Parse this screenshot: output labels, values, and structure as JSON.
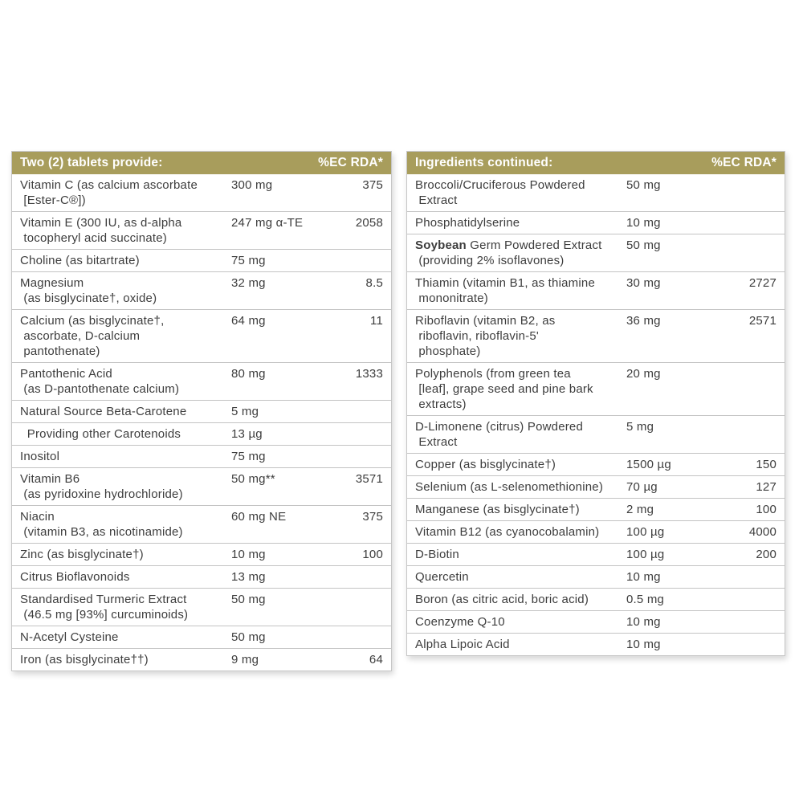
{
  "colors": {
    "header_bg": "#a89d5c",
    "header_text": "#ffffff",
    "row_text": "#3d3d3d",
    "divider": "#c3c3c3",
    "table_border": "#c6c6c6",
    "page_bg": "#ffffff"
  },
  "tables": [
    {
      "id": "left",
      "header": {
        "title": "Two (2) tablets provide:",
        "rda_label": "%EC RDA*"
      },
      "rows": [
        {
          "name": "Vitamin C (as calcium ascorbate\n [Ester-C®])",
          "amount": "300 mg",
          "rda": "375"
        },
        {
          "name": "Vitamin E (300 IU, as d-alpha\n tocopheryl acid succinate)",
          "amount": "247 mg α-TE",
          "rda": "2058"
        },
        {
          "name": "Choline (as bitartrate)",
          "amount": "75 mg",
          "rda": ""
        },
        {
          "name": "Magnesium\n (as bisglycinate†, oxide)",
          "amount": "32 mg",
          "rda": "8.5"
        },
        {
          "name": "Calcium (as bisglycinate†,\n ascorbate, D-calcium\n pantothenate)",
          "amount": "64 mg",
          "rda": "11"
        },
        {
          "name": "Pantothenic Acid\n (as D-pantothenate calcium)",
          "amount": "80 mg",
          "rda": "1333"
        },
        {
          "name": "Natural Source Beta-Carotene",
          "amount": "5 mg",
          "rda": ""
        },
        {
          "name": "  Providing other Carotenoids",
          "amount": "13 µg",
          "rda": ""
        },
        {
          "name": "Inositol",
          "amount": "75 mg",
          "rda": ""
        },
        {
          "name": "Vitamin B6\n (as pyridoxine hydrochloride)",
          "amount": "50 mg**",
          "rda": "3571"
        },
        {
          "name": "Niacin\n (vitamin B3, as nicotinamide)",
          "amount": "60 mg NE",
          "rda": "375"
        },
        {
          "name": "Zinc (as bisglycinate†)",
          "amount": "10 mg",
          "rda": "100"
        },
        {
          "name": "Citrus Bioflavonoids",
          "amount": "13 mg",
          "rda": ""
        },
        {
          "name": "Standardised Turmeric Extract\n (46.5 mg [93%] curcuminoids)",
          "amount": "50 mg",
          "rda": ""
        },
        {
          "name": "N-Acetyl Cysteine",
          "amount": "50 mg",
          "rda": ""
        },
        {
          "name": "Iron (as bisglycinate††)",
          "amount": "9 mg",
          "rda": "64"
        }
      ]
    },
    {
      "id": "right",
      "header": {
        "title": "Ingredients continued:",
        "rda_label": "%EC RDA*"
      },
      "rows": [
        {
          "name": "Broccoli/Cruciferous Powdered\n Extract",
          "amount": "50 mg",
          "rda": ""
        },
        {
          "name": "Phosphatidylserine",
          "amount": "10 mg",
          "rda": ""
        },
        {
          "name_bold": "Soybean",
          "name": " Germ Powdered Extract\n (providing 2% isoflavones)",
          "amount": "50 mg",
          "rda": ""
        },
        {
          "name": "Thiamin (vitamin B1, as thiamine\n mononitrate)",
          "amount": "30 mg",
          "rda": "2727"
        },
        {
          "name": "Riboflavin (vitamin B2, as\n riboflavin, riboflavin-5'\n phosphate)",
          "amount": "36 mg",
          "rda": "2571"
        },
        {
          "name": "Polyphenols (from green tea\n [leaf], grape seed and pine bark\n extracts)",
          "amount": "20 mg",
          "rda": ""
        },
        {
          "name": "D-Limonene (citrus) Powdered\n Extract",
          "amount": "5 mg",
          "rda": ""
        },
        {
          "name": "Copper (as bisglycinate†)",
          "amount": "1500 µg",
          "rda": "150"
        },
        {
          "name": "Selenium (as L-selenomethionine)",
          "amount": "70 µg",
          "rda": "127"
        },
        {
          "name": "Manganese (as bisglycinate†)",
          "amount": "2 mg",
          "rda": "100"
        },
        {
          "name": "Vitamin B12 (as cyanocobalamin)",
          "amount": "100 µg",
          "rda": "4000"
        },
        {
          "name": "D-Biotin",
          "amount": "100 µg",
          "rda": "200"
        },
        {
          "name": "Quercetin",
          "amount": "10 mg",
          "rda": ""
        },
        {
          "name": "Boron (as citric acid, boric acid)",
          "amount": "0.5 mg",
          "rda": ""
        },
        {
          "name": "Coenzyme Q-10",
          "amount": "10 mg",
          "rda": ""
        },
        {
          "name": "Alpha Lipoic Acid",
          "amount": "10 mg",
          "rda": ""
        }
      ]
    }
  ]
}
